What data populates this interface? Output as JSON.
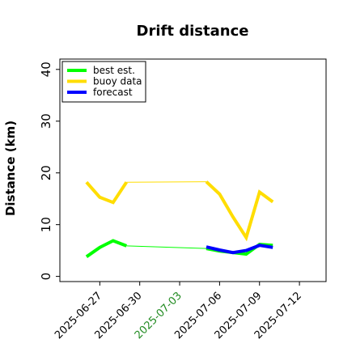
{
  "chart_data": {
    "type": "line",
    "title": "Drift distance",
    "xlabel": "",
    "ylabel": "Distance (km)",
    "x_type": "date",
    "xlim": [
      "2025-06-24",
      "2025-07-14"
    ],
    "ylim": [
      -1,
      42
    ],
    "y_ticks": [
      0,
      10,
      20,
      30,
      40
    ],
    "x_ticks": [
      "2025-06-27",
      "2025-06-30",
      "2025-07-03",
      "2025-07-06",
      "2025-07-09",
      "2025-07-12"
    ],
    "highlight_tick": "2025-07-03",
    "grid": false,
    "legend_position": "upper left",
    "colors": {
      "best": "#00ff00",
      "buoy": "#ffdd00",
      "forecast": "#0000ff",
      "highlight_tick": "#228b22",
      "axis": "#000000"
    },
    "series": [
      {
        "name": "best est.",
        "key": "best",
        "segments": [
          {
            "width": "thick",
            "points": [
              [
                "2025-06-26",
                3.8
              ],
              [
                "2025-06-27",
                5.6
              ],
              [
                "2025-06-28",
                6.9
              ],
              [
                "2025-06-29",
                5.9
              ]
            ]
          },
          {
            "width": "thin",
            "points": [
              [
                "2025-06-29",
                5.9
              ],
              [
                "2025-07-05",
                5.4
              ]
            ]
          },
          {
            "width": "thick",
            "points": [
              [
                "2025-07-05",
                5.4
              ],
              [
                "2025-07-06",
                4.9
              ],
              [
                "2025-07-07",
                4.6
              ],
              [
                "2025-07-08",
                4.3
              ],
              [
                "2025-07-09",
                6.2
              ],
              [
                "2025-07-10",
                6.0
              ]
            ]
          }
        ]
      },
      {
        "name": "buoy data",
        "key": "buoy",
        "segments": [
          {
            "width": "thick",
            "points": [
              [
                "2025-06-26",
                18.2
              ],
              [
                "2025-06-27",
                15.3
              ],
              [
                "2025-06-28",
                14.3
              ],
              [
                "2025-06-29",
                18.2
              ]
            ]
          },
          {
            "width": "thin",
            "points": [
              [
                "2025-06-29",
                18.2
              ],
              [
                "2025-07-05",
                18.3
              ]
            ]
          },
          {
            "width": "thick",
            "points": [
              [
                "2025-07-05",
                18.3
              ],
              [
                "2025-07-06",
                15.9
              ],
              [
                "2025-07-07",
                11.5
              ],
              [
                "2025-07-08",
                7.5
              ],
              [
                "2025-07-09",
                16.3
              ],
              [
                "2025-07-10",
                14.4
              ]
            ]
          }
        ]
      },
      {
        "name": "forecast",
        "key": "forecast",
        "segments": [
          {
            "width": "thick",
            "points": [
              [
                "2025-07-05",
                5.7
              ],
              [
                "2025-07-06",
                5.1
              ],
              [
                "2025-07-07",
                4.6
              ],
              [
                "2025-07-08",
                5.0
              ],
              [
                "2025-07-09",
                6.0
              ],
              [
                "2025-07-10",
                5.6
              ]
            ]
          }
        ]
      }
    ]
  }
}
